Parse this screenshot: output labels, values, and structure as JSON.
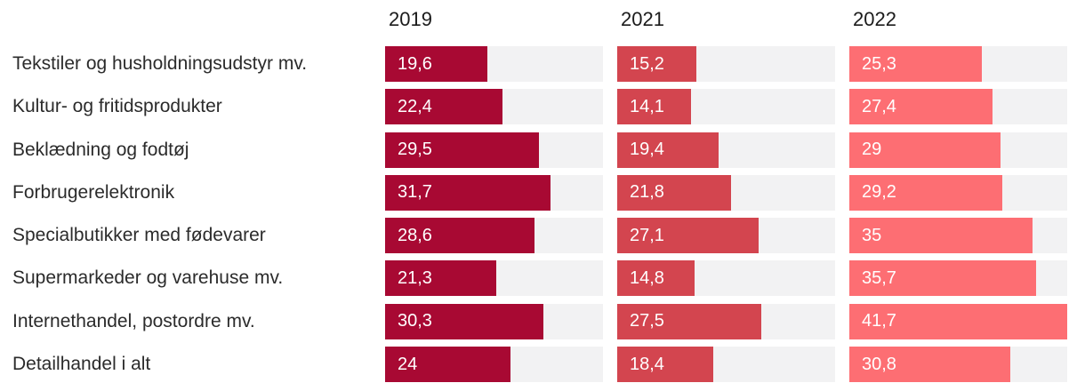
{
  "chart_data": {
    "type": "bar",
    "orientation": "horizontal",
    "layout": "small-multiples: one panel per year, shared x scale, value labels inside bars",
    "title": "",
    "xlabel": "",
    "ylabel": "",
    "xlim": [
      0,
      41.7
    ],
    "grid": false,
    "legend_position": "column-headers-top",
    "value_decimal_separator": ",",
    "track_color": "#F2F2F3",
    "label_color": "#2B2B2B",
    "header_color": "#1B1B1B",
    "value_text_color": "#FFFFFF",
    "categories": [
      "Tekstiler og husholdningsudstyr mv.",
      "Kultur- og fritidsprodukter",
      "Beklædning og fodtøj",
      "Forbrugerelektronik",
      "Specialbutikker med fødevarer",
      "Supermarkeder og varehuse mv.",
      "Internethandel, postordre mv.",
      "Detailhandel i alt"
    ],
    "series": [
      {
        "name": "2019",
        "color": "#A80933",
        "values": [
          19.6,
          22.4,
          29.5,
          31.7,
          28.6,
          21.3,
          30.3,
          24
        ]
      },
      {
        "name": "2021",
        "color": "#D3454F",
        "values": [
          15.2,
          14.1,
          19.4,
          21.8,
          27.1,
          14.8,
          27.5,
          18.4
        ]
      },
      {
        "name": "2022",
        "color": "#FD6E73",
        "values": [
          25.3,
          27.4,
          29,
          29.2,
          35,
          35.7,
          41.7,
          30.8
        ]
      }
    ]
  }
}
